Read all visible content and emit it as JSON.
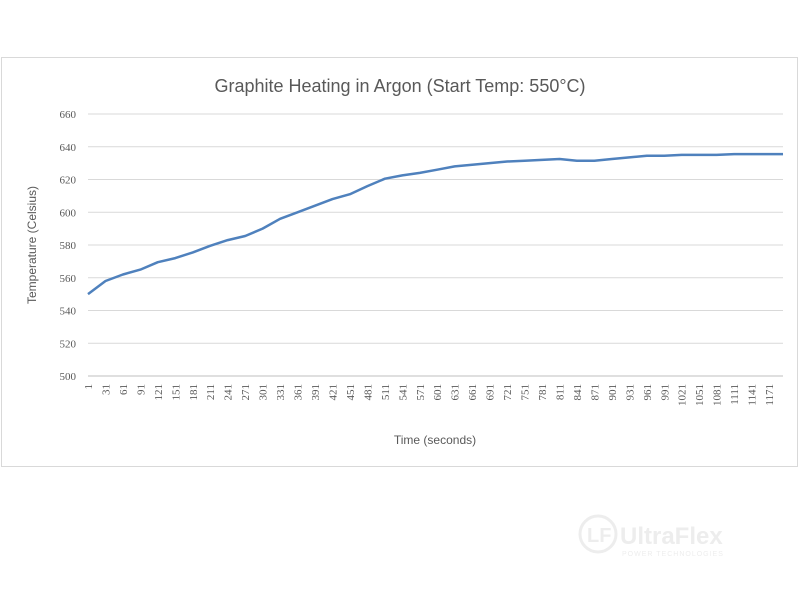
{
  "chart_data": {
    "type": "line",
    "title": "Graphite Heating in Argon (Start Temp: 550°C)",
    "xlabel": "Time (seconds)",
    "ylabel": "Temperature (Celsius)",
    "ylim": [
      500,
      660
    ],
    "yticks": [
      "500",
      "520",
      "540",
      "560",
      "580",
      "600",
      "620",
      "640",
      "660"
    ],
    "xticks": [
      "1",
      "31",
      "61",
      "91",
      "121",
      "151",
      "181",
      "211",
      "241",
      "271",
      "301",
      "331",
      "361",
      "391",
      "421",
      "451",
      "481",
      "511",
      "541",
      "571",
      "601",
      "631",
      "661",
      "691",
      "721",
      "751",
      "781",
      "811",
      "841",
      "871",
      "901",
      "931",
      "961",
      "991",
      "1021",
      "1051",
      "1081",
      "1111",
      "1141",
      "1171"
    ],
    "xlim": [
      1,
      1195
    ],
    "grid": true,
    "legend": "none",
    "color": "#4f81bd",
    "series": [
      {
        "x": [
          1,
          31,
          61,
          91,
          121,
          151,
          181,
          211,
          241,
          271,
          301,
          331,
          361,
          391,
          421,
          451,
          481,
          511,
          541,
          571,
          601,
          631,
          661,
          691,
          721,
          751,
          781,
          811,
          841,
          871,
          901,
          931,
          961,
          991,
          1021,
          1051,
          1081,
          1111,
          1141,
          1171,
          1195
        ],
        "y": [
          550,
          558,
          562,
          565,
          569.5,
          572,
          575.5,
          579.5,
          583,
          585.5,
          590,
          596,
          600,
          604,
          608,
          611,
          616,
          620.5,
          622.5,
          624,
          626,
          628,
          629,
          630,
          631,
          631.5,
          632,
          632.5,
          631.5,
          631.5,
          632.5,
          633.5,
          634.5,
          634.5,
          635,
          635,
          635,
          635.5,
          635.5,
          635.5,
          635.5
        ]
      }
    ]
  },
  "watermark": {
    "brand": "UltraFlex",
    "tagline": "POWER TECHNOLOGIES"
  }
}
